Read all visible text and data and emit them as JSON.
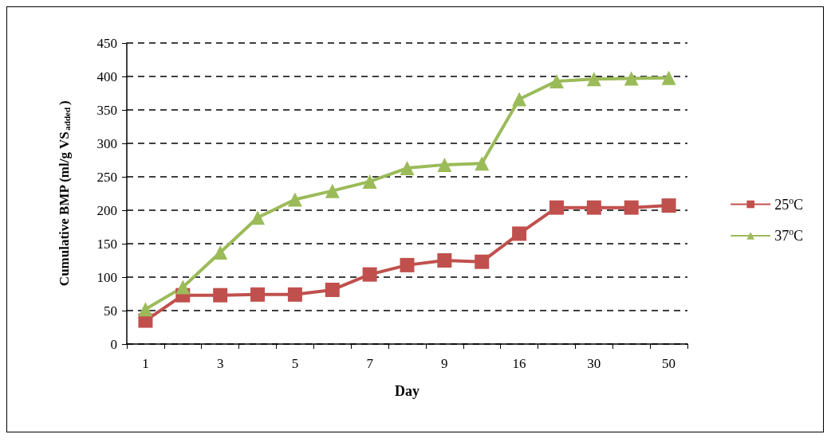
{
  "chart_data": {
    "type": "line",
    "xlabel": "Day",
    "ylabel": "Cumulative BMP (ml/g VS$_{added}$)",
    "categories": [
      "1",
      null,
      "3",
      null,
      "5",
      null,
      "7",
      null,
      "9",
      null,
      "16",
      null,
      "30",
      null,
      "50"
    ],
    "series": [
      {
        "name": "25$^{o}$C",
        "color": "#c0504d",
        "marker": "square",
        "values": [
          35,
          73,
          73,
          74,
          74,
          81,
          104,
          118,
          125,
          123,
          165,
          204,
          204,
          204,
          207
        ]
      },
      {
        "name": "37$^{o}$C",
        "color": "#9bbb59",
        "marker": "triangle",
        "values": [
          52,
          85,
          137,
          189,
          216,
          229,
          243,
          263,
          268,
          270,
          366,
          393,
          396,
          397,
          398
        ]
      }
    ],
    "ylim": [
      0,
      450
    ],
    "yticks": [
      0,
      50,
      100,
      150,
      200,
      250,
      300,
      350,
      400,
      450
    ],
    "grid": "y",
    "legend": "right",
    "line_style": "solid"
  }
}
